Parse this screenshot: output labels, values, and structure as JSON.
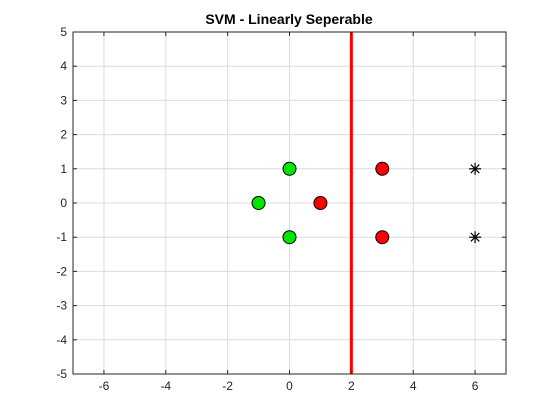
{
  "chart_data": {
    "type": "scatter",
    "title": "SVM - Linearly Seperable",
    "xlabel": "",
    "ylabel": "",
    "xlim": [
      -7,
      7
    ],
    "ylim": [
      -5,
      5
    ],
    "xticks": [
      -6,
      -4,
      -2,
      0,
      2,
      4,
      6
    ],
    "yticks": [
      -5,
      -4,
      -3,
      -2,
      -1,
      0,
      1,
      2,
      3,
      4,
      5
    ],
    "xtick_labels": [
      "-6",
      "-4",
      "-2",
      "0",
      "2",
      "4",
      "6"
    ],
    "ytick_labels": [
      "-5",
      "-4",
      "-3",
      "-2",
      "-1",
      "0",
      "1",
      "2",
      "3",
      "4",
      "5"
    ],
    "grid": true,
    "series": [
      {
        "marker": "circle",
        "color": "#00e600",
        "points": [
          [
            0,
            1
          ],
          [
            -1,
            0
          ],
          [
            0,
            -1
          ]
        ]
      },
      {
        "marker": "circle",
        "color": "#ff0000",
        "points": [
          [
            3,
            1
          ],
          [
            1,
            0
          ],
          [
            3,
            -1
          ]
        ]
      },
      {
        "marker": "star",
        "color": "#000000",
        "points": [
          [
            6,
            1
          ],
          [
            6,
            -1
          ]
        ]
      }
    ],
    "decision_boundary": {
      "x": 2,
      "color": "#ff0000"
    }
  }
}
